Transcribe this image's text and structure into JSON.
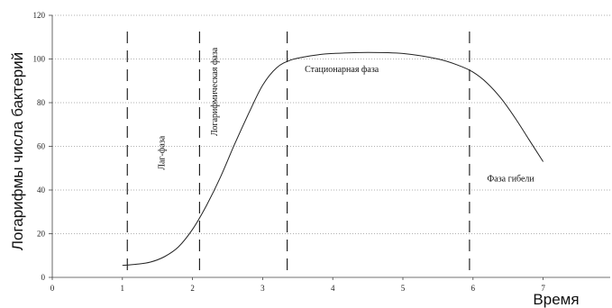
{
  "chart_data": {
    "type": "line",
    "title": "",
    "xlabel": "Время",
    "ylabel": "Логарифмы числа бактерий",
    "xlim": [
      0,
      8
    ],
    "ylim": [
      0,
      120
    ],
    "x_ticks": [
      0,
      1,
      2,
      3,
      4,
      5,
      6,
      7
    ],
    "y_ticks": [
      0,
      20,
      40,
      60,
      80,
      100,
      120
    ],
    "grid": "horizontal dotted",
    "line_color": "#222222",
    "series": [
      {
        "x": [
          1.0,
          1.2,
          1.4,
          1.6,
          1.8,
          2.0,
          2.2,
          2.4,
          2.6,
          2.8,
          3.0,
          3.2,
          3.4,
          3.6,
          3.8,
          4.0,
          4.5,
          5.0,
          5.5,
          5.8,
          6.0,
          6.2,
          6.4,
          6.6,
          6.8,
          7.0
        ],
        "y": [
          5.5,
          6,
          7,
          9.5,
          14,
          22,
          33,
          46,
          61,
          75,
          88,
          96,
          99.5,
          101,
          102,
          102.5,
          103,
          102.5,
          100,
          97,
          94,
          89,
          82,
          73,
          63,
          53
        ]
      }
    ],
    "phase_lines": [
      1.07,
      2.1,
      3.35,
      5.95
    ],
    "phases": [
      {
        "label": "Лаг-фаза",
        "x": 1.6,
        "y": 57,
        "rotated": true
      },
      {
        "label": "Логарифмическая фаза",
        "x": 2.35,
        "y": 85,
        "rotated": true
      },
      {
        "label": "Стационарная фаза",
        "x": 3.6,
        "y": 94,
        "rotated": false
      },
      {
        "label": "Фаза гибели",
        "x": 6.2,
        "y": 44,
        "rotated": false
      }
    ]
  }
}
